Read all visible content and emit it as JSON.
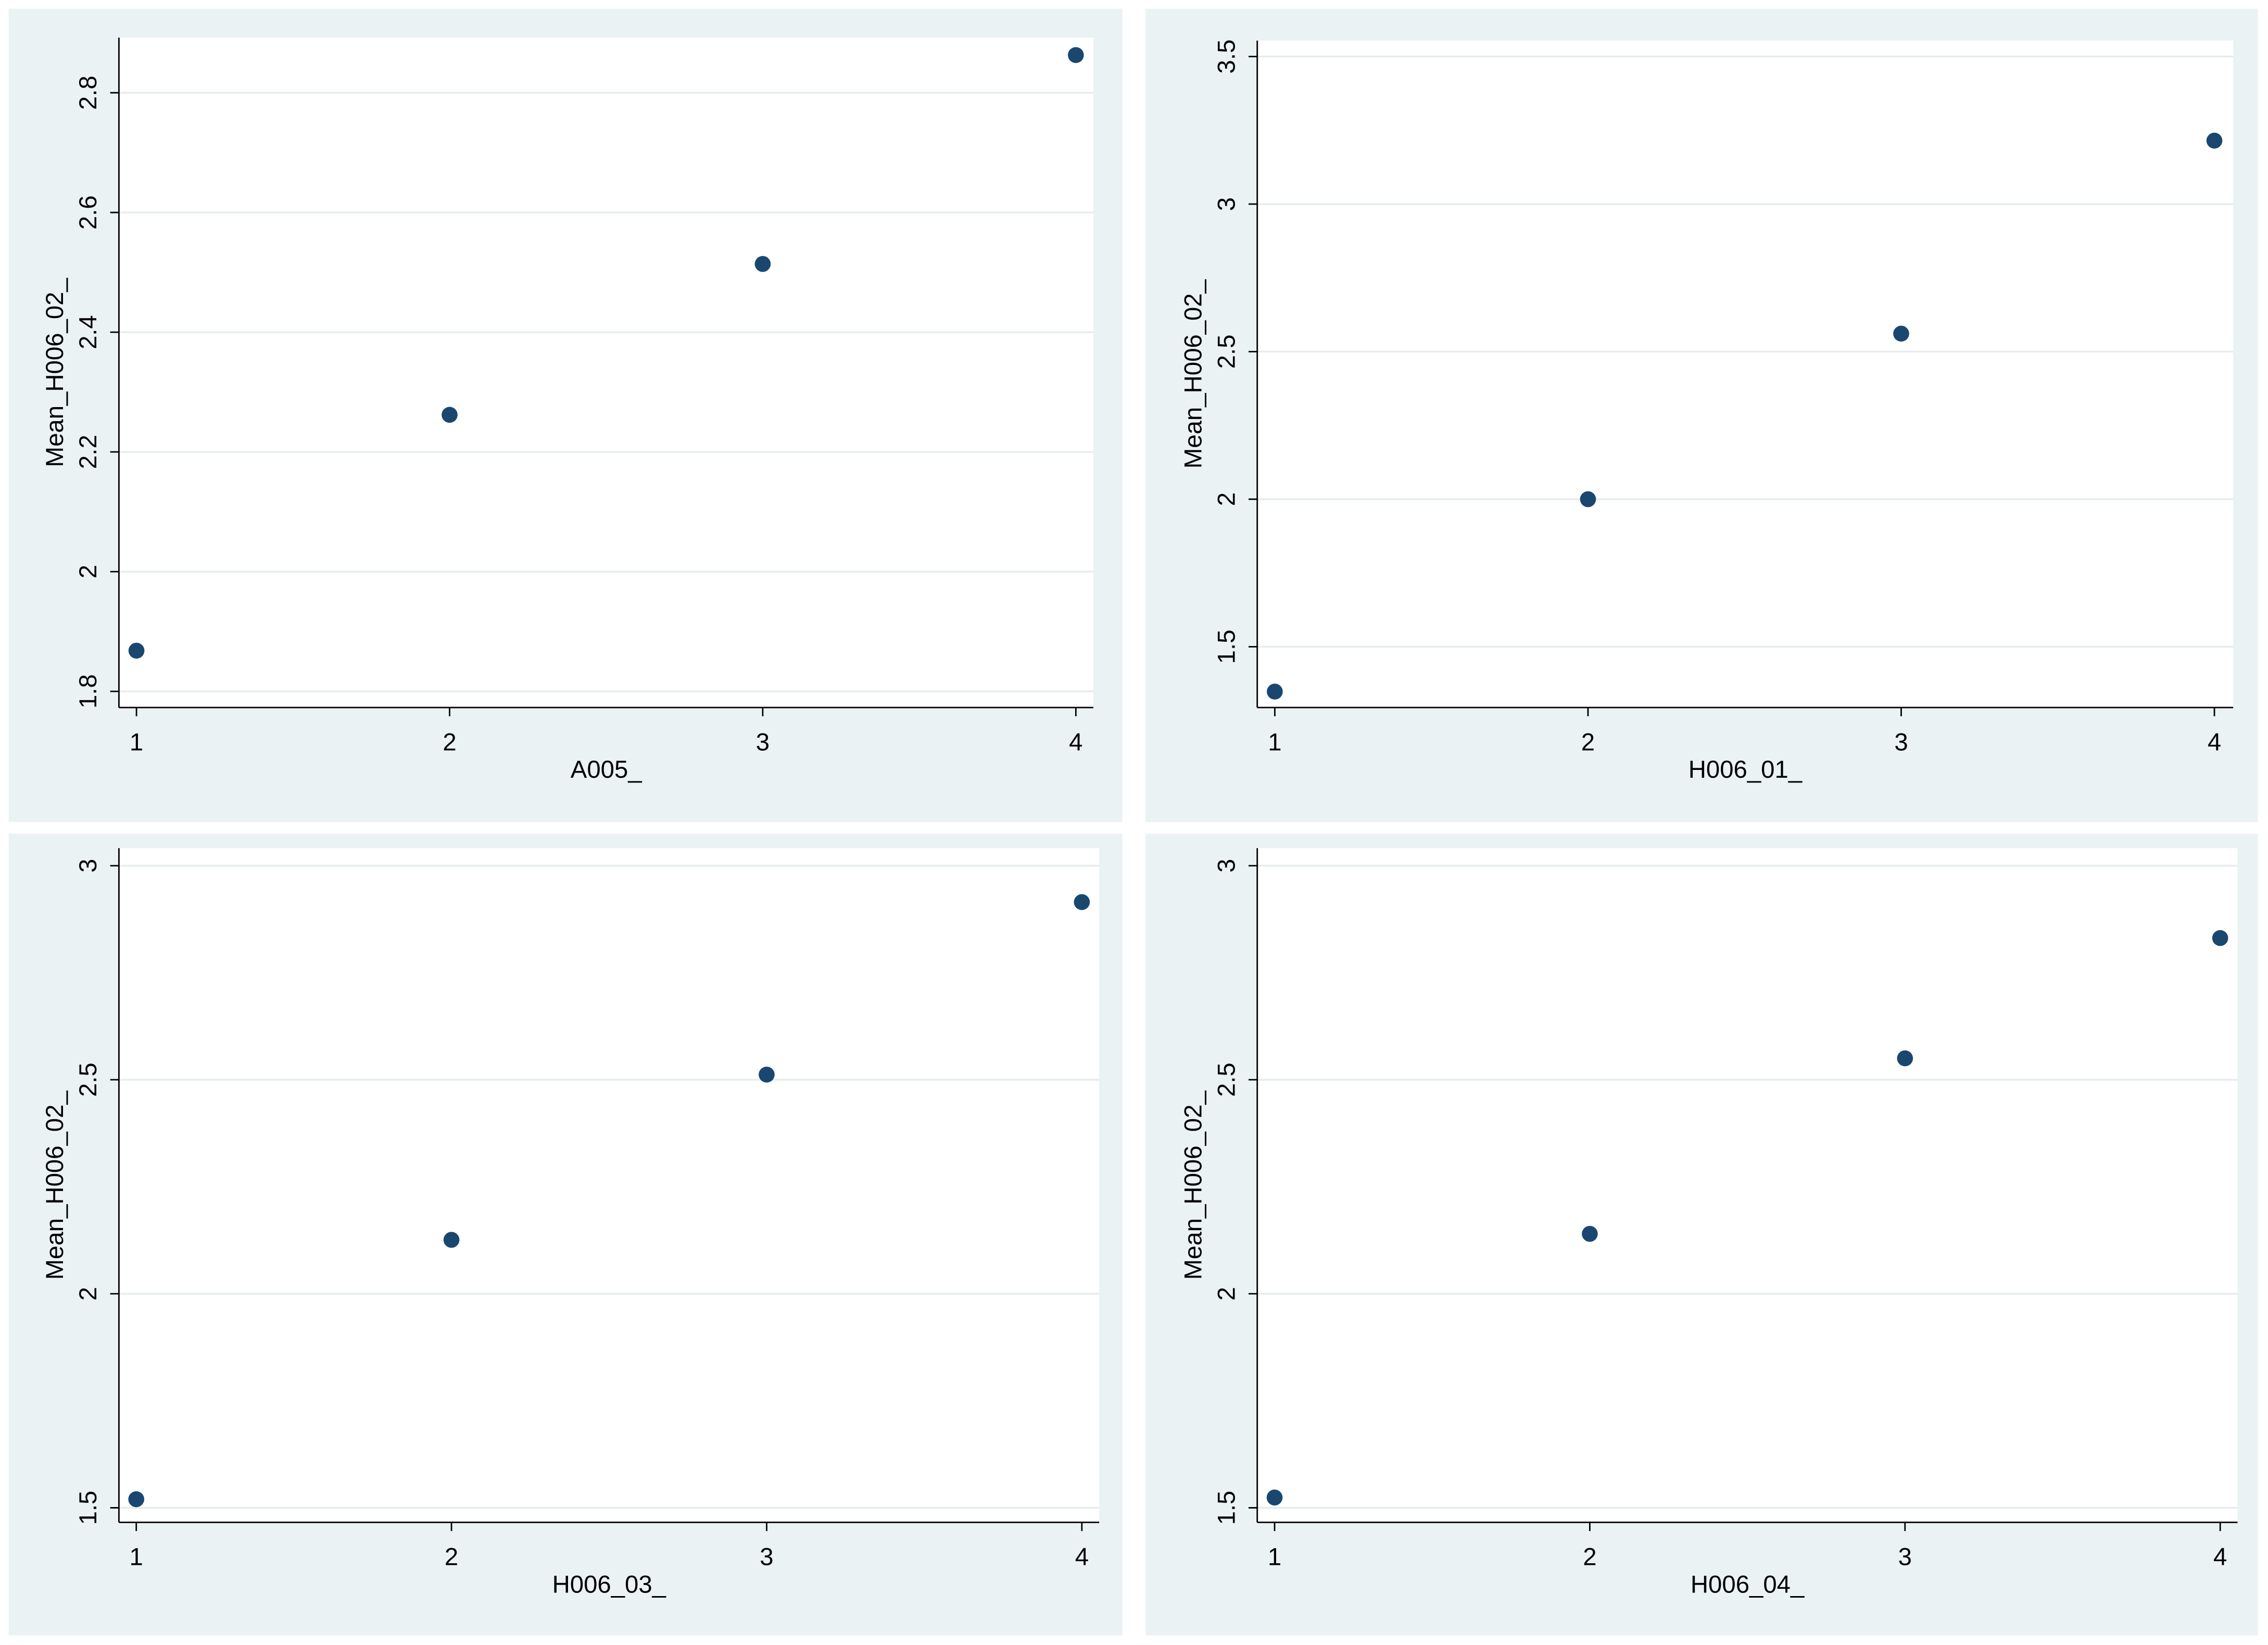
{
  "chart_data": [
    {
      "type": "scatter",
      "x_label": "A005_",
      "y_label": "Mean_H006_02_",
      "color": "#1a476f",
      "grid": true,
      "x": [
        1,
        2,
        3,
        4
      ],
      "values": [
        1.868,
        2.262,
        2.514,
        2.863
      ],
      "xlim": [
        0.944,
        4.056
      ],
      "ylim": [
        1.773,
        2.892
      ],
      "xticks": [
        1,
        2,
        3,
        4
      ],
      "yticks": [
        1.8,
        2,
        2.2,
        2.4,
        2.6,
        2.8
      ]
    },
    {
      "type": "scatter",
      "x_label": "H006_01_",
      "y_label": "Mean_H006_02_",
      "color": "#1a476f",
      "grid": true,
      "x": [
        1,
        2,
        3,
        4
      ],
      "values": [
        1.348,
        2.0,
        2.561,
        3.215
      ],
      "xlim": [
        0.944,
        4.06
      ],
      "ylim": [
        1.294,
        3.554
      ],
      "xticks": [
        1,
        2,
        3,
        4
      ],
      "yticks": [
        1.5,
        2,
        2.5,
        3,
        3.5
      ]
    },
    {
      "type": "scatter",
      "x_label": "H006_03_",
      "y_label": "Mean_H006_02_",
      "color": "#1a476f",
      "grid": true,
      "x": [
        1,
        2,
        3,
        4
      ],
      "values": [
        1.52,
        2.126,
        2.512,
        2.915
      ],
      "xlim": [
        0.945,
        4.055
      ],
      "ylim": [
        1.466,
        3.041
      ],
      "xticks": [
        1,
        2,
        3,
        4
      ],
      "yticks": [
        1.5,
        2,
        2.5,
        3
      ]
    },
    {
      "type": "scatter",
      "x_label": "H006_04_",
      "y_label": "Mean_H006_02_",
      "color": "#1a476f",
      "grid": true,
      "x": [
        1,
        2,
        3,
        4
      ],
      "values": [
        1.524,
        2.14,
        2.55,
        2.831
      ],
      "xlim": [
        0.945,
        4.055
      ],
      "ylim": [
        1.466,
        3.041
      ],
      "xticks": [
        1,
        2,
        3,
        4
      ],
      "yticks": [
        1.5,
        2,
        2.5,
        3
      ]
    }
  ]
}
